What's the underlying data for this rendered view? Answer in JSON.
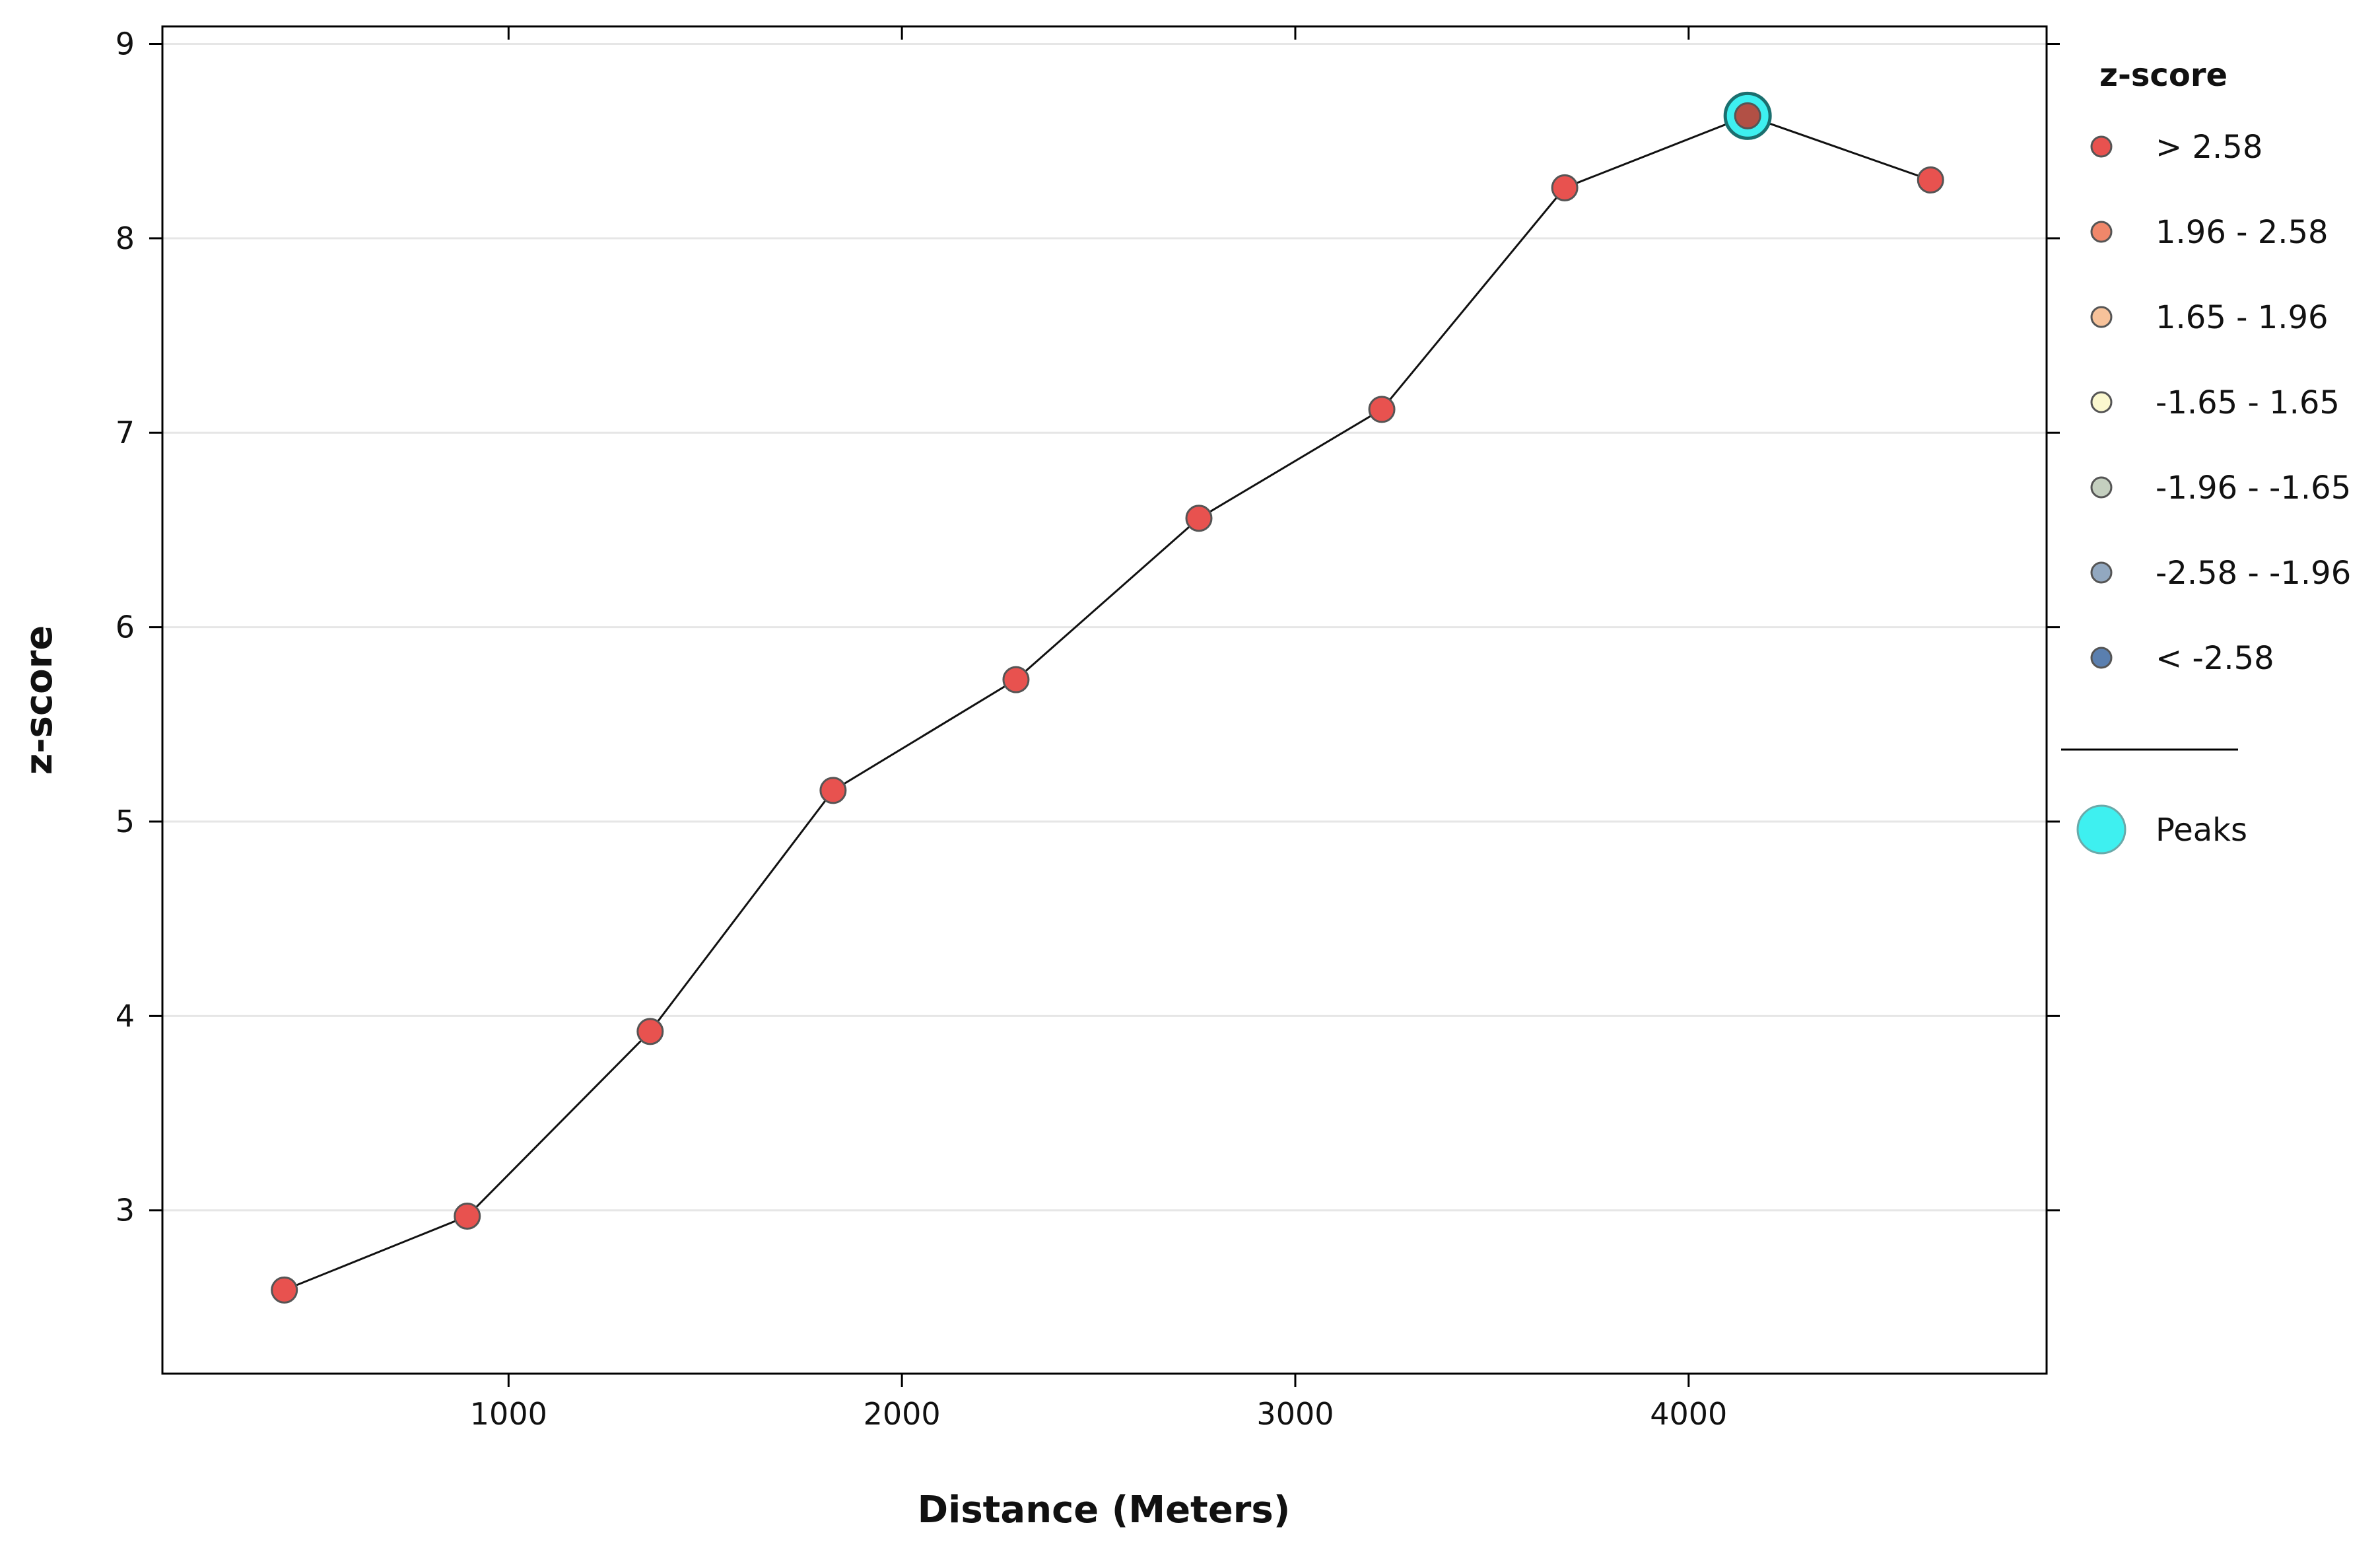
{
  "chart_data": {
    "type": "line",
    "xlabel": "Distance (Meters)",
    "ylabel": "z-score",
    "xlim": [
      120,
      4910
    ],
    "ylim": [
      2.16,
      9.09
    ],
    "x_ticks": [
      1000,
      2000,
      3000,
      4000
    ],
    "y_ticks": [
      3,
      4,
      5,
      6,
      7,
      8,
      9
    ],
    "grid": "horizontal",
    "legend_position": "right",
    "series": [
      {
        "x": [
          430,
          895,
          1360,
          1825,
          2290,
          2755,
          3220,
          3685,
          4150,
          4615
        ],
        "y": [
          2.59,
          2.97,
          3.92,
          5.16,
          5.73,
          6.56,
          7.12,
          8.26,
          8.63,
          8.3
        ],
        "z_class": [
          "> 2.58",
          "> 2.58",
          "> 2.58",
          "> 2.58",
          "> 2.58",
          "> 2.58",
          "> 2.58",
          "> 2.58",
          "> 2.58",
          "> 2.58"
        ]
      }
    ],
    "peaks": [
      {
        "x": 4150,
        "y": 8.63
      }
    ],
    "legend": {
      "title": "z-score",
      "entries": [
        {
          "label": "> 2.58",
          "color": "#e8524f"
        },
        {
          "label": "1.96 - 2.58",
          "color": "#f0876a"
        },
        {
          "label": "1.65 - 1.96",
          "color": "#f7c29a"
        },
        {
          "label": "-1.65 - 1.65",
          "color": "#fbf8cf"
        },
        {
          "label": "-1.96 - -1.65",
          "color": "#c4cfbf"
        },
        {
          "label": "-2.58 - -1.96",
          "color": "#92a8c0"
        },
        {
          "label": "< -2.58",
          "color": "#5a7faf"
        }
      ],
      "peaks_label": "Peaks",
      "peaks_color": "#3ef0f0"
    }
  }
}
